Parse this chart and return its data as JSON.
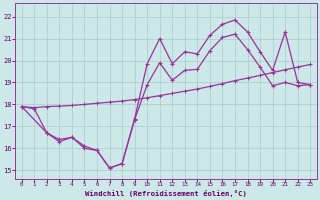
{
  "xlabel": "Windchill (Refroidissement éolien,°C)",
  "xlim": [
    -0.5,
    23.5
  ],
  "ylim": [
    14.6,
    22.6
  ],
  "yticks": [
    15,
    16,
    17,
    18,
    19,
    20,
    21,
    22
  ],
  "xticks": [
    0,
    1,
    2,
    3,
    4,
    5,
    6,
    7,
    8,
    9,
    10,
    11,
    12,
    13,
    14,
    15,
    16,
    17,
    18,
    19,
    20,
    21,
    22,
    23
  ],
  "bg_color": "#cce8e8",
  "grid_color": "#aacccc",
  "line_color": "#993399",
  "line1_x": [
    0,
    1,
    2,
    3,
    4,
    5,
    6,
    7,
    8,
    9,
    10,
    11,
    12,
    13,
    14,
    15,
    16,
    17,
    18,
    19,
    20,
    21,
    22,
    23
  ],
  "line1_y": [
    17.9,
    17.85,
    17.9,
    17.92,
    17.95,
    18.0,
    18.05,
    18.1,
    18.15,
    18.22,
    18.3,
    18.4,
    18.5,
    18.6,
    18.7,
    18.82,
    18.95,
    19.08,
    19.2,
    19.32,
    19.45,
    19.58,
    19.7,
    19.82
  ],
  "line2_x": [
    0,
    2,
    3,
    4,
    5,
    6,
    7,
    8,
    9,
    10,
    11,
    12,
    13,
    14,
    15,
    16,
    17,
    18,
    19,
    20,
    21,
    22,
    23
  ],
  "line2_y": [
    17.9,
    16.7,
    16.3,
    16.5,
    16.0,
    15.9,
    15.1,
    15.3,
    17.35,
    19.85,
    21.0,
    19.85,
    20.4,
    20.3,
    21.15,
    21.65,
    21.85,
    21.3,
    20.4,
    19.55,
    21.3,
    19.0,
    18.9
  ],
  "line3_x": [
    0,
    1,
    2,
    3,
    4,
    5,
    6,
    7,
    8,
    9,
    10,
    11,
    12,
    13,
    14,
    15,
    16,
    17,
    18,
    19,
    20,
    21,
    22,
    23
  ],
  "line3_y": [
    17.9,
    17.8,
    16.7,
    16.4,
    16.5,
    16.1,
    15.9,
    15.1,
    15.3,
    17.3,
    18.9,
    19.9,
    19.1,
    19.55,
    19.6,
    20.45,
    21.05,
    21.2,
    20.5,
    19.7,
    18.85,
    19.0,
    18.85,
    18.9
  ]
}
